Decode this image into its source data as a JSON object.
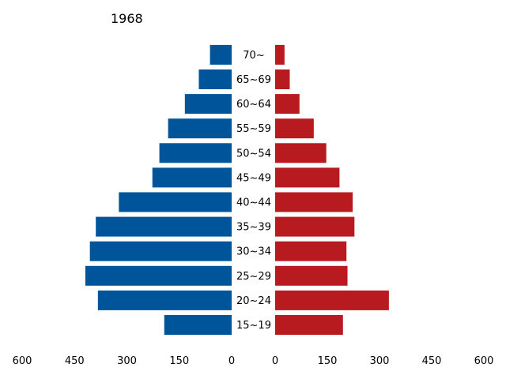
{
  "chart_data": {
    "type": "bar",
    "title": "1968",
    "categories": [
      "15~19",
      "20~24",
      "25~29",
      "30~34",
      "35~39",
      "40~44",
      "45~49",
      "50~54",
      "55~59",
      "60~64",
      "65~69",
      "70~"
    ],
    "series": [
      {
        "side": "left",
        "color": "#00559a",
        "values": [
          193,
          383,
          419,
          406,
          389,
          323,
          227,
          207,
          182,
          134,
          94,
          62
        ]
      },
      {
        "side": "right",
        "color": "#b81b1f",
        "values": [
          195,
          327,
          208,
          205,
          228,
          223,
          185,
          147,
          111,
          70,
          42,
          27
        ]
      }
    ],
    "xlim": [
      0,
      600
    ],
    "xticks": [
      "600",
      "450",
      "300",
      "150",
      "0"
    ],
    "xticks_right": [
      "0",
      "150",
      "300",
      "450",
      "600"
    ],
    "xlabel": "",
    "ylabel": "",
    "grid": false,
    "legend": "none"
  }
}
